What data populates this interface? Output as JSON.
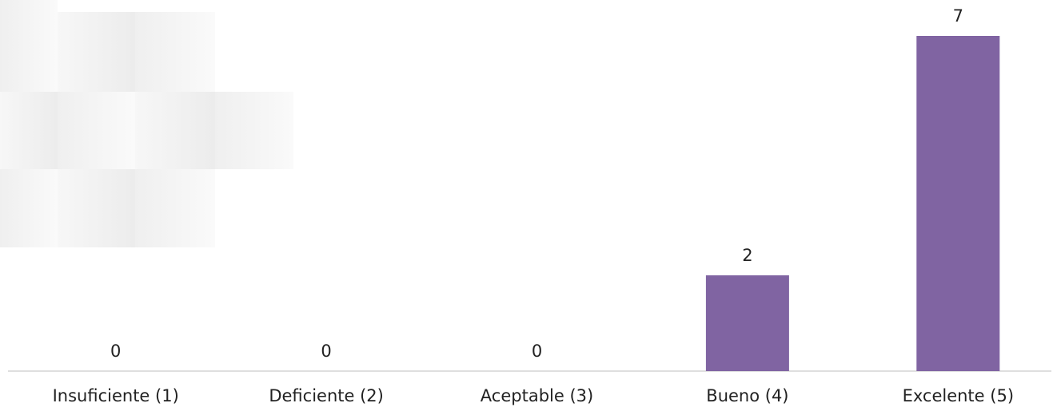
{
  "chart_data": {
    "type": "bar",
    "categories": [
      "Insuficiente (1)",
      "Deficiente (2)",
      "Aceptable (3)",
      "Bueno (4)",
      "Excelente (5)"
    ],
    "values": [
      0,
      0,
      0,
      2,
      7
    ],
    "color": "#8064a2",
    "ylim": [
      0,
      7
    ]
  }
}
